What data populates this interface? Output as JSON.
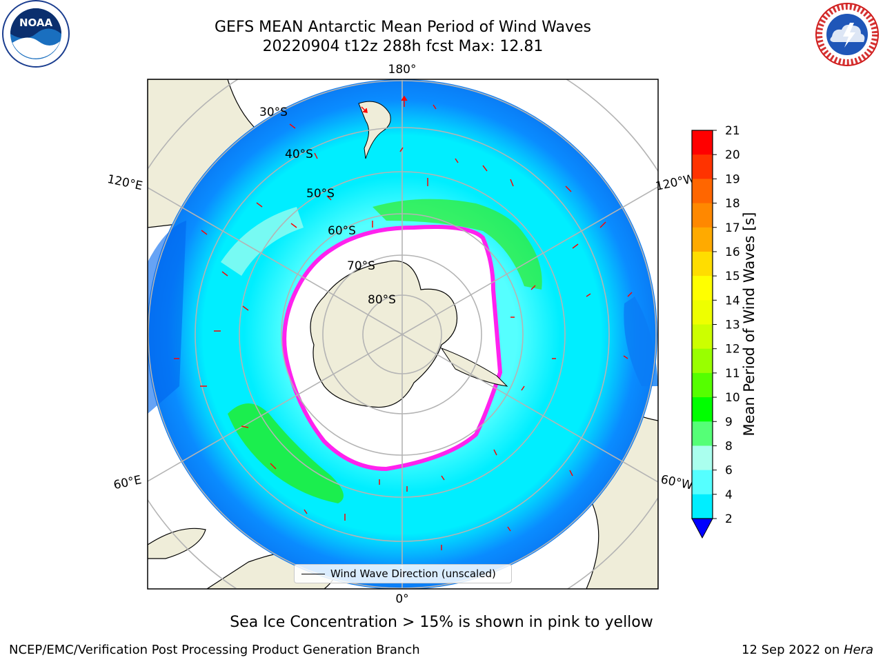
{
  "header": {
    "title_line1": "GEFS MEAN Antarctic Mean Period of Wind Waves",
    "title_line2": "20220904 t12z 288h fcst   Max: 12.81"
  },
  "logos": {
    "left": "noaa-logo",
    "right": "nws-logo"
  },
  "map": {
    "projection": "south-polar-stereographic",
    "longitude_labels": {
      "top": "180°",
      "bottom": "0°",
      "upper_left": "120°E",
      "upper_right": "120°W",
      "lower_left": "60°E",
      "lower_right": "60°W"
    },
    "latitude_labels": [
      "30°S",
      "40°S",
      "50°S",
      "60°S",
      "70°S",
      "80°S"
    ],
    "colors": {
      "land": "#efedd9",
      "ocean_low": "#0080ff",
      "ocean_mid": "#00ffff",
      "ocean_high": "#00ff00",
      "sea_ice_edge": "#ff00ff",
      "arrows": "#ff0000",
      "grid": "#b4b4b4"
    }
  },
  "colorbar": {
    "label": "Mean Period of Wind Waves [s]",
    "ticks": [
      "21",
      "20",
      "19",
      "18",
      "17",
      "16",
      "15",
      "14",
      "13",
      "12",
      "11",
      "10",
      "9",
      "8",
      "6",
      "4",
      "2"
    ],
    "colors_top_to_bottom": [
      "#ff0000",
      "#ff3300",
      "#ff6600",
      "#ff8800",
      "#ffaa00",
      "#ffdd00",
      "#ffff00",
      "#eeff00",
      "#ccff00",
      "#99ff00",
      "#55ff00",
      "#00ff00",
      "#55ff77",
      "#aaffee",
      "#55ffff",
      "#00eeff",
      "#0080ff"
    ],
    "extend_color": "#0000ff"
  },
  "legend": {
    "label": "Wind Wave Direction (unscaled)"
  },
  "footer": {
    "note": "Sea Ice Concentration > 15% is shown in pink to yellow",
    "left": "NCEP/EMC/Verification Post Processing Product Generation Branch",
    "right_prefix": "12 Sep 2022 on ",
    "right_host": "Hera"
  }
}
